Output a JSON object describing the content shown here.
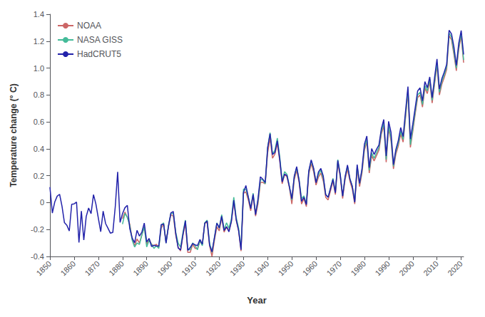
{
  "chart_data": {
    "type": "line",
    "xlabel": "Year",
    "ylabel": "Temperature change (° C)",
    "xlim": [
      1850,
      2021
    ],
    "ylim": [
      -0.4,
      1.4
    ],
    "xticks": [
      1850,
      1860,
      1870,
      1880,
      1890,
      1900,
      1910,
      1920,
      1930,
      1940,
      1950,
      1960,
      1970,
      1980,
      1990,
      2000,
      2010,
      2020
    ],
    "yticks": [
      -0.4,
      -0.2,
      0,
      0.2,
      0.4,
      0.6,
      0.8,
      {
        "value": 1.0,
        "label": "1.0"
      },
      1.2,
      1.4
    ],
    "grid": false,
    "legend": "upper left",
    "background_color": "#ffffff",
    "series": [
      {
        "name": "NOAA",
        "color": "#cc6666",
        "x": [
          1880,
          1881,
          1882,
          1883,
          1884,
          1885,
          1886,
          1887,
          1888,
          1889,
          1890,
          1891,
          1892,
          1893,
          1894,
          1895,
          1896,
          1897,
          1898,
          1899,
          1900,
          1901,
          1902,
          1903,
          1904,
          1905,
          1906,
          1907,
          1908,
          1909,
          1910,
          1911,
          1912,
          1913,
          1914,
          1915,
          1916,
          1917,
          1918,
          1919,
          1920,
          1921,
          1922,
          1923,
          1924,
          1925,
          1926,
          1927,
          1928,
          1929,
          1930,
          1931,
          1932,
          1933,
          1934,
          1935,
          1936,
          1937,
          1938,
          1939,
          1940,
          1941,
          1942,
          1943,
          1944,
          1945,
          1946,
          1947,
          1948,
          1949,
          1950,
          1951,
          1952,
          1953,
          1954,
          1955,
          1956,
          1957,
          1958,
          1959,
          1960,
          1961,
          1962,
          1963,
          1964,
          1965,
          1966,
          1967,
          1968,
          1969,
          1970,
          1971,
          1972,
          1973,
          1974,
          1975,
          1976,
          1977,
          1978,
          1979,
          1980,
          1981,
          1982,
          1983,
          1984,
          1985,
          1986,
          1987,
          1988,
          1989,
          1990,
          1991,
          1992,
          1993,
          1994,
          1995,
          1996,
          1997,
          1998,
          1999,
          2000,
          2001,
          2002,
          2003,
          2004,
          2005,
          2006,
          2007,
          2008,
          2009,
          2010,
          2011,
          2012,
          2013,
          2014,
          2015,
          2016,
          2017,
          2018,
          2019,
          2020,
          2021
        ],
        "values": [
          -0.12,
          -0.07,
          -0.11,
          -0.16,
          -0.27,
          -0.32,
          -0.27,
          -0.3,
          -0.24,
          -0.18,
          -0.31,
          -0.27,
          -0.31,
          -0.32,
          -0.31,
          -0.33,
          -0.19,
          -0.16,
          -0.29,
          -0.18,
          -0.09,
          -0.1,
          -0.24,
          -0.33,
          -0.36,
          -0.24,
          -0.16,
          -0.37,
          -0.37,
          -0.31,
          -0.34,
          -0.34,
          -0.29,
          -0.31,
          -0.15,
          -0.15,
          -0.32,
          -0.4,
          -0.28,
          -0.18,
          -0.21,
          -0.11,
          -0.22,
          -0.18,
          -0.21,
          -0.14,
          0.01,
          -0.13,
          -0.21,
          -0.36,
          0.07,
          0.08,
          0.02,
          -0.06,
          0.05,
          -0.1,
          -0.01,
          0.15,
          0.15,
          0.14,
          0.37,
          0.48,
          0.33,
          0.36,
          0.44,
          0.31,
          0.14,
          0.21,
          0.19,
          0.11,
          -0.01,
          0.17,
          0.24,
          0.15,
          -0.01,
          0.03,
          -0.03,
          0.21,
          0.29,
          0.23,
          0.13,
          0.19,
          0.22,
          0.16,
          0.04,
          0.02,
          0.09,
          0.16,
          0.06,
          0.3,
          0.19,
          0.03,
          0.17,
          0.25,
          0.16,
          0.1,
          -0.01,
          0.25,
          0.12,
          0.22,
          0.39,
          0.45,
          0.22,
          0.35,
          0.31,
          0.35,
          0.39,
          0.51,
          0.57,
          0.3,
          0.55,
          0.46,
          0.25,
          0.36,
          0.42,
          0.51,
          0.45,
          0.63,
          0.82,
          0.41,
          0.53,
          0.66,
          0.78,
          0.8,
          0.71,
          0.85,
          0.81,
          0.9,
          0.74,
          0.88,
          1.02,
          0.8,
          0.88,
          0.93,
          0.99,
          1.24,
          1.21,
          1.1,
          0.98,
          1.14,
          1.24,
          1.04
        ]
      },
      {
        "name": "NASA GISS",
        "color": "#44bb99",
        "x": [
          1880,
          1881,
          1882,
          1883,
          1884,
          1885,
          1886,
          1887,
          1888,
          1889,
          1890,
          1891,
          1892,
          1893,
          1894,
          1895,
          1896,
          1897,
          1898,
          1899,
          1900,
          1901,
          1902,
          1903,
          1904,
          1905,
          1906,
          1907,
          1908,
          1909,
          1910,
          1911,
          1912,
          1913,
          1914,
          1915,
          1916,
          1917,
          1918,
          1919,
          1920,
          1921,
          1922,
          1923,
          1924,
          1925,
          1926,
          1927,
          1928,
          1929,
          1930,
          1931,
          1932,
          1933,
          1934,
          1935,
          1936,
          1937,
          1938,
          1939,
          1940,
          1941,
          1942,
          1943,
          1944,
          1945,
          1946,
          1947,
          1948,
          1949,
          1950,
          1951,
          1952,
          1953,
          1954,
          1955,
          1956,
          1957,
          1958,
          1959,
          1960,
          1961,
          1962,
          1963,
          1964,
          1965,
          1966,
          1967,
          1968,
          1969,
          1970,
          1971,
          1972,
          1973,
          1974,
          1975,
          1976,
          1977,
          1978,
          1979,
          1980,
          1981,
          1982,
          1983,
          1984,
          1985,
          1986,
          1987,
          1988,
          1989,
          1990,
          1991,
          1992,
          1993,
          1994,
          1995,
          1996,
          1997,
          1998,
          1999,
          2000,
          2001,
          2002,
          2003,
          2004,
          2005,
          2006,
          2007,
          2008,
          2009,
          2010,
          2011,
          2012,
          2013,
          2014,
          2015,
          2016,
          2017,
          2018,
          2019,
          2020,
          2021
        ],
        "values": [
          -0.16,
          -0.08,
          -0.11,
          -0.17,
          -0.28,
          -0.33,
          -0.3,
          -0.31,
          -0.24,
          -0.18,
          -0.33,
          -0.28,
          -0.31,
          -0.34,
          -0.32,
          -0.34,
          -0.17,
          -0.15,
          -0.3,
          -0.17,
          -0.08,
          -0.08,
          -0.22,
          -0.3,
          -0.33,
          -0.22,
          -0.13,
          -0.35,
          -0.35,
          -0.3,
          -0.32,
          -0.35,
          -0.28,
          -0.32,
          -0.15,
          -0.13,
          -0.3,
          -0.37,
          -0.26,
          -0.15,
          -0.19,
          -0.09,
          -0.2,
          -0.15,
          -0.19,
          -0.12,
          0.04,
          -0.11,
          -0.19,
          -0.34,
          0.1,
          0.1,
          0.04,
          -0.04,
          0.07,
          -0.08,
          0.01,
          0.17,
          0.17,
          0.14,
          0.41,
          0.52,
          0.36,
          0.39,
          0.48,
          0.34,
          0.16,
          0.23,
          0.21,
          0.12,
          0.02,
          0.19,
          0.26,
          0.17,
          0.03,
          0.05,
          -0.01,
          0.23,
          0.31,
          0.25,
          0.15,
          0.21,
          0.24,
          0.18,
          0.06,
          0.04,
          0.11,
          0.18,
          0.08,
          0.32,
          0.21,
          0.05,
          0.19,
          0.27,
          0.18,
          0.12,
          0.01,
          0.27,
          0.14,
          0.24,
          0.41,
          0.47,
          0.24,
          0.37,
          0.33,
          0.37,
          0.41,
          0.53,
          0.59,
          0.32,
          0.57,
          0.48,
          0.27,
          0.38,
          0.44,
          0.53,
          0.47,
          0.65,
          0.84,
          0.43,
          0.55,
          0.68,
          0.8,
          0.82,
          0.73,
          0.87,
          0.83,
          0.92,
          0.76,
          0.9,
          1.04,
          0.82,
          0.9,
          0.95,
          1.01,
          1.26,
          1.23,
          1.12,
          1.0,
          1.16,
          1.26,
          1.06
        ]
      },
      {
        "name": "HadCRUT5",
        "color": "#2222aa",
        "x": [
          1850,
          1851,
          1852,
          1853,
          1854,
          1855,
          1856,
          1857,
          1858,
          1859,
          1860,
          1861,
          1862,
          1863,
          1864,
          1865,
          1866,
          1867,
          1868,
          1869,
          1870,
          1871,
          1872,
          1873,
          1874,
          1875,
          1876,
          1877,
          1878,
          1879,
          1880,
          1881,
          1882,
          1883,
          1884,
          1885,
          1886,
          1887,
          1888,
          1889,
          1890,
          1891,
          1892,
          1893,
          1894,
          1895,
          1896,
          1897,
          1898,
          1899,
          1900,
          1901,
          1902,
          1903,
          1904,
          1905,
          1906,
          1907,
          1908,
          1909,
          1910,
          1911,
          1912,
          1913,
          1914,
          1915,
          1916,
          1917,
          1918,
          1919,
          1920,
          1921,
          1922,
          1923,
          1924,
          1925,
          1926,
          1927,
          1928,
          1929,
          1930,
          1931,
          1932,
          1933,
          1934,
          1935,
          1936,
          1937,
          1938,
          1939,
          1940,
          1941,
          1942,
          1943,
          1944,
          1945,
          1946,
          1947,
          1948,
          1949,
          1950,
          1951,
          1952,
          1953,
          1954,
          1955,
          1956,
          1957,
          1958,
          1959,
          1960,
          1961,
          1962,
          1963,
          1964,
          1965,
          1966,
          1967,
          1968,
          1969,
          1970,
          1971,
          1972,
          1973,
          1974,
          1975,
          1976,
          1977,
          1978,
          1979,
          1980,
          1981,
          1982,
          1983,
          1984,
          1985,
          1986,
          1987,
          1988,
          1989,
          1990,
          1991,
          1992,
          1993,
          1994,
          1995,
          1996,
          1997,
          1998,
          1999,
          2000,
          2001,
          2002,
          2003,
          2004,
          2005,
          2006,
          2007,
          2008,
          2009,
          2010,
          2011,
          2012,
          2013,
          2014,
          2015,
          2016,
          2017,
          2018,
          2019,
          2020,
          2021
        ],
        "values": [
          0.115,
          -0.078,
          0.005,
          0.048,
          0.062,
          -0.027,
          -0.149,
          -0.168,
          -0.211,
          -0.012,
          -0.009,
          0.004,
          -0.296,
          -0.063,
          -0.278,
          -0.103,
          -0.04,
          -0.082,
          0.059,
          -0.01,
          -0.115,
          -0.216,
          -0.063,
          -0.155,
          -0.19,
          -0.227,
          -0.221,
          -0.032,
          0.228,
          -0.147,
          -0.082,
          -0.038,
          -0.02,
          -0.192,
          -0.263,
          -0.299,
          -0.206,
          -0.249,
          -0.219,
          -0.152,
          -0.292,
          -0.266,
          -0.326,
          -0.317,
          -0.322,
          -0.323,
          -0.163,
          -0.159,
          -0.301,
          -0.174,
          -0.076,
          -0.066,
          -0.228,
          -0.337,
          -0.352,
          -0.236,
          -0.135,
          -0.355,
          -0.333,
          -0.304,
          -0.314,
          -0.319,
          -0.274,
          -0.31,
          -0.154,
          -0.137,
          -0.316,
          -0.365,
          -0.26,
          -0.153,
          -0.188,
          -0.101,
          -0.207,
          -0.178,
          -0.217,
          -0.141,
          0.018,
          -0.126,
          -0.207,
          -0.351,
          0.074,
          0.127,
          0.043,
          -0.045,
          0.061,
          -0.09,
          0.027,
          0.192,
          0.174,
          0.149,
          0.408,
          0.512,
          0.357,
          0.373,
          0.46,
          0.322,
          0.153,
          0.212,
          0.2,
          0.118,
          0.028,
          0.197,
          0.268,
          0.165,
          0.01,
          0.04,
          -0.015,
          0.236,
          0.318,
          0.257,
          0.148,
          0.228,
          0.254,
          0.197,
          0.059,
          0.04,
          0.107,
          0.173,
          0.073,
          0.313,
          0.208,
          0.048,
          0.191,
          0.28,
          0.176,
          0.121,
          0.003,
          0.283,
          0.143,
          0.252,
          0.434,
          0.495,
          0.259,
          0.402,
          0.358,
          0.396,
          0.428,
          0.549,
          0.618,
          0.347,
          0.604,
          0.521,
          0.282,
          0.395,
          0.461,
          0.558,
          0.491,
          0.68,
          0.862,
          0.473,
          0.584,
          0.706,
          0.83,
          0.853,
          0.756,
          0.899,
          0.853,
          0.934,
          0.78,
          0.929,
          1.067,
          0.845,
          0.921,
          0.97,
          1.027,
          1.281,
          1.254,
          1.157,
          1.02,
          1.185,
          1.279,
          1.101
        ]
      }
    ]
  }
}
